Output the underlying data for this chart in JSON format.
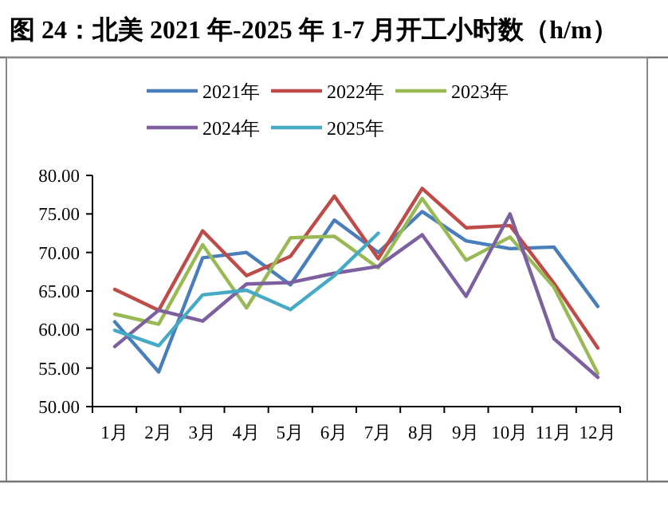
{
  "chart_data": {
    "type": "line",
    "title": "图 24：北美 2021 年-2025 年 1-7 月开工小时数（h/m）",
    "categories": [
      "1月",
      "2月",
      "3月",
      "4月",
      "5月",
      "6月",
      "7月",
      "8月",
      "9月",
      "10月",
      "11月",
      "12月"
    ],
    "series": [
      {
        "name": "2021年",
        "color": "#4a7ebb",
        "values": [
          61.0,
          54.5,
          69.3,
          70.0,
          65.8,
          74.2,
          70.0,
          75.3,
          71.5,
          70.5,
          70.7,
          63.0
        ]
      },
      {
        "name": "2022年",
        "color": "#be4b48",
        "values": [
          65.2,
          62.5,
          72.8,
          67.0,
          69.5,
          77.3,
          69.2,
          78.3,
          73.2,
          73.5,
          66.0,
          57.6
        ]
      },
      {
        "name": "2023年",
        "color": "#98b954",
        "values": [
          62.0,
          60.7,
          71.0,
          62.8,
          71.9,
          72.1,
          68.0,
          77.0,
          69.0,
          72.0,
          65.5,
          54.3
        ]
      },
      {
        "name": "2024年",
        "color": "#7d60a0",
        "values": [
          57.8,
          62.5,
          61.1,
          65.9,
          66.1,
          67.3,
          68.2,
          72.3,
          64.3,
          75.0,
          58.8,
          53.8
        ]
      },
      {
        "name": "2025年",
        "color": "#46aac5",
        "values": [
          59.9,
          57.9,
          64.5,
          65.1,
          62.6,
          67.0,
          72.5,
          null,
          null,
          null,
          null,
          null
        ]
      }
    ],
    "ylim": [
      50,
      80
    ],
    "yticks": [
      {
        "value": 50,
        "label": "50.00"
      },
      {
        "value": 55,
        "label": "55.00"
      },
      {
        "value": 60,
        "label": "60.00"
      },
      {
        "value": 65,
        "label": "65.00"
      },
      {
        "value": 70,
        "label": "70.00"
      },
      {
        "value": 75,
        "label": "75.00"
      },
      {
        "value": 80,
        "label": "80.00"
      }
    ],
    "legend": "top"
  }
}
